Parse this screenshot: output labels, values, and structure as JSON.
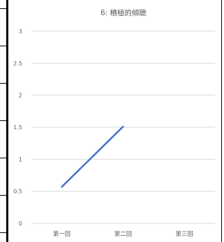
{
  "chart_data": {
    "type": "line",
    "title": "6: 積極的傾聴",
    "xlabel": "",
    "ylabel": "",
    "categories": [
      "第一回",
      "第二回",
      "第三回"
    ],
    "series": [
      {
        "values": [
          0.57,
          1.51,
          null
        ]
      }
    ],
    "ylim": [
      0,
      3
    ],
    "yticks": [
      0,
      0.5,
      1,
      1.5,
      2,
      2.5,
      3
    ],
    "ytick_labels": [
      "0",
      "0.5",
      "1",
      "1.5",
      "2",
      "2.5",
      "3"
    ],
    "grid": true,
    "legend": "none",
    "colors": {
      "line": "#4472c4",
      "grid": "#d9d9d9",
      "text": "#595959"
    }
  }
}
